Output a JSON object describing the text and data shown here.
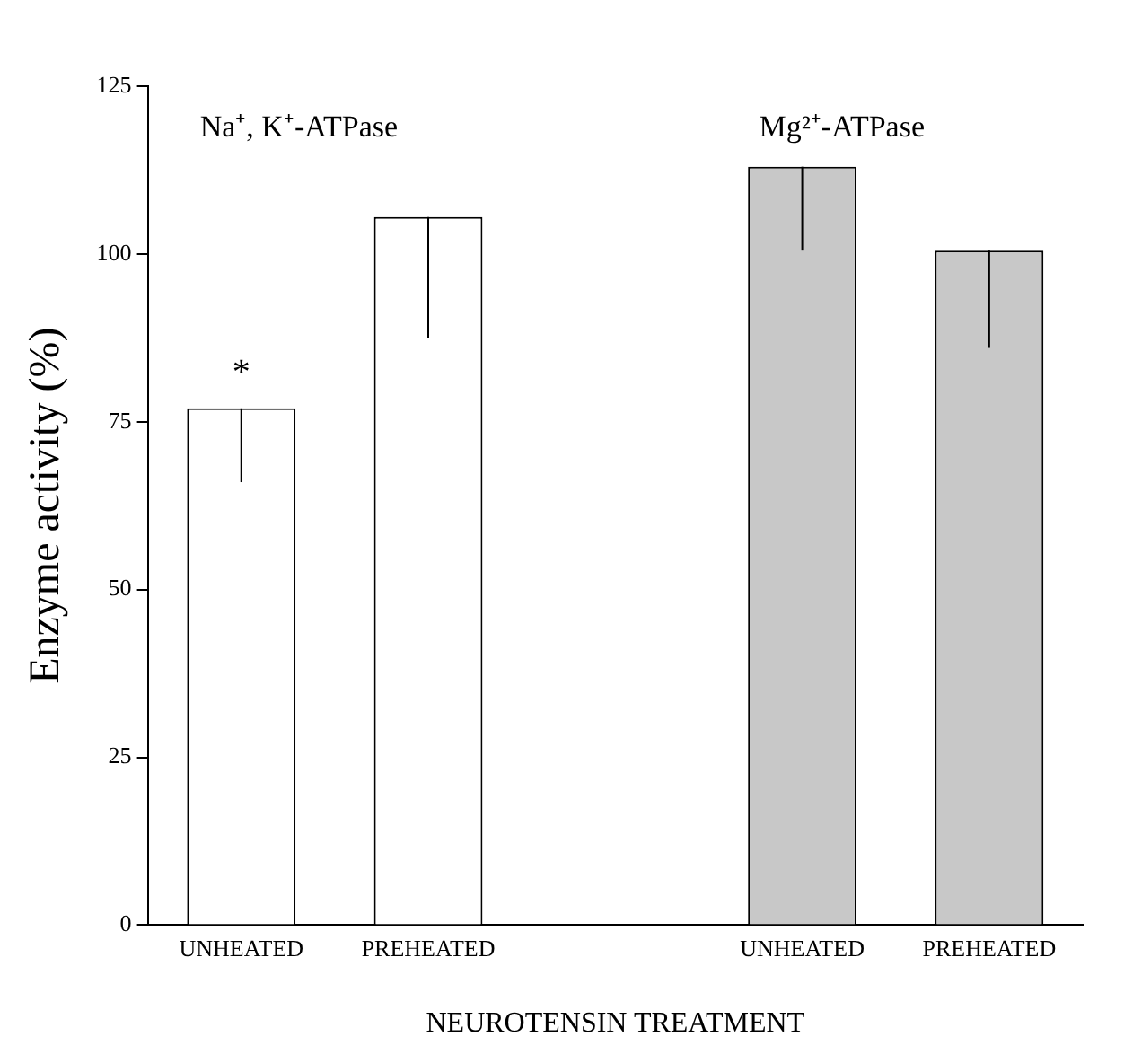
{
  "chart_data": {
    "type": "bar",
    "categories": [
      "UNHEATED",
      "PREHEATED",
      null,
      "UNHEATED",
      "PREHEATED"
    ],
    "values": [
      77,
      105.5,
      null,
      113,
      100.5
    ],
    "colors": [
      "#ffffff",
      "#ffffff",
      null,
      "#c8c8c8",
      "#c8c8c8"
    ],
    "errors": [
      [
        66,
        77
      ],
      [
        87.5,
        105.5
      ],
      null,
      [
        100.5,
        113
      ],
      [
        86,
        100.5
      ]
    ],
    "xlabel": "NEUROTENSIN TREATMENT",
    "ylabel": "Enzyme activity (%)",
    "annotations": [
      "Na⁺, K⁺-ATPase",
      "Mg²⁺-ATPase",
      "*"
    ],
    "ylim": [
      0,
      125
    ],
    "yticks": [
      0,
      25,
      50,
      75,
      100,
      125
    ],
    "grid": false,
    "legend": false
  }
}
